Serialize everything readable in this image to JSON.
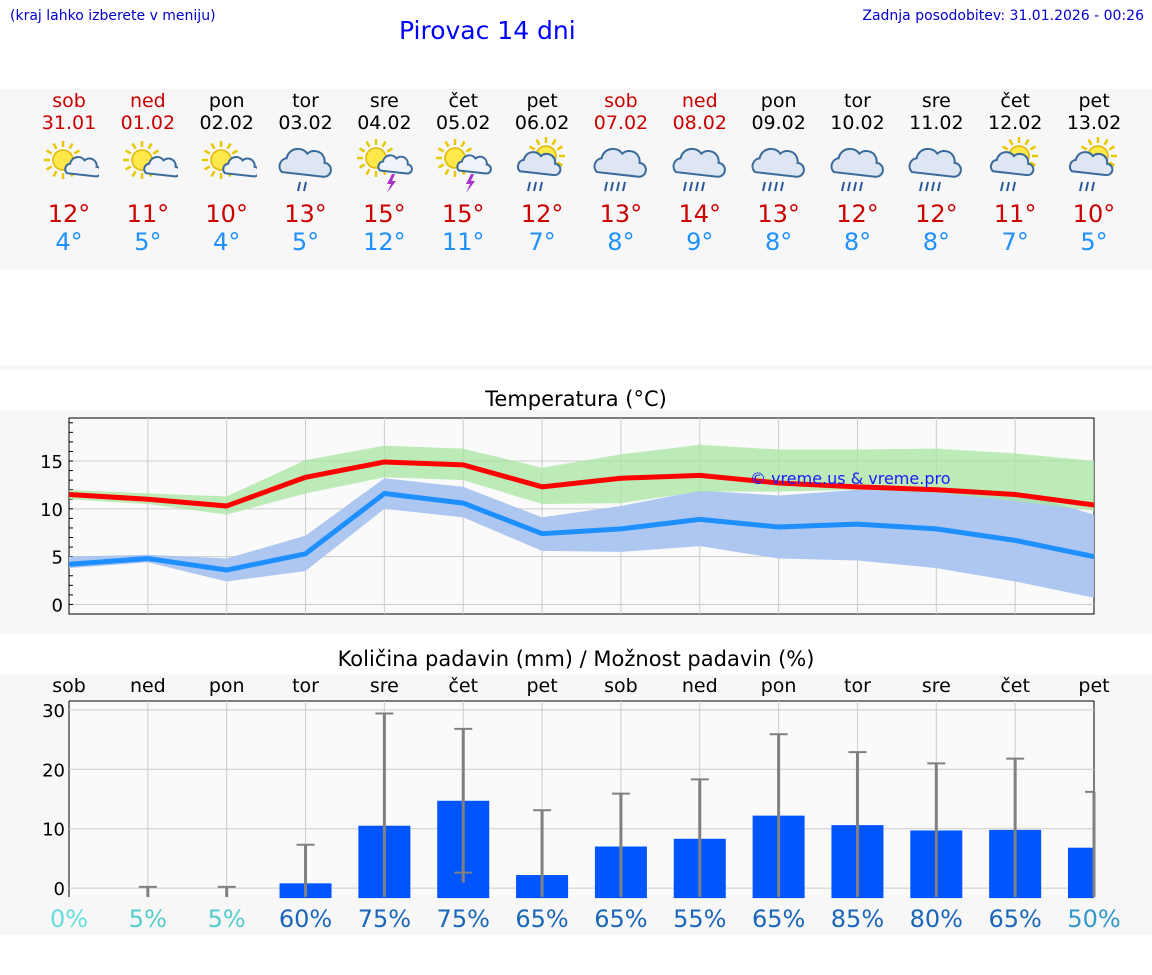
{
  "header": {
    "hint": "(kraj lahko izberete v meniju)",
    "title": "Pirovac 14 dni",
    "updated": "Zadnja posodobitev: 31.01.2026 - 00:26"
  },
  "days": [
    {
      "name": "sob",
      "date": "31.01",
      "weekend": true,
      "icon": "sun-cloud-icon",
      "max": "12°",
      "min": "4°"
    },
    {
      "name": "ned",
      "date": "01.02",
      "weekend": true,
      "icon": "sun-cloud-icon",
      "max": "11°",
      "min": "5°"
    },
    {
      "name": "pon",
      "date": "02.02",
      "weekend": false,
      "icon": "sun-cloud-icon",
      "max": "10°",
      "min": "4°"
    },
    {
      "name": "tor",
      "date": "03.02",
      "weekend": false,
      "icon": "cloud-light-rain-icon",
      "max": "13°",
      "min": "5°"
    },
    {
      "name": "sre",
      "date": "04.02",
      "weekend": false,
      "icon": "sun-thunder-icon",
      "max": "15°",
      "min": "12°"
    },
    {
      "name": "čet",
      "date": "05.02",
      "weekend": false,
      "icon": "sun-thunder-icon",
      "max": "15°",
      "min": "11°"
    },
    {
      "name": "pet",
      "date": "06.02",
      "weekend": false,
      "icon": "sun-cloud-rain-icon",
      "max": "12°",
      "min": "7°"
    },
    {
      "name": "sob",
      "date": "07.02",
      "weekend": true,
      "icon": "cloud-rain-icon",
      "max": "13°",
      "min": "8°"
    },
    {
      "name": "ned",
      "date": "08.02",
      "weekend": true,
      "icon": "cloud-rain-icon",
      "max": "14°",
      "min": "9°"
    },
    {
      "name": "pon",
      "date": "09.02",
      "weekend": false,
      "icon": "cloud-rain-icon",
      "max": "13°",
      "min": "8°"
    },
    {
      "name": "tor",
      "date": "10.02",
      "weekend": false,
      "icon": "cloud-rain-icon",
      "max": "12°",
      "min": "8°"
    },
    {
      "name": "sre",
      "date": "11.02",
      "weekend": false,
      "icon": "cloud-rain-icon",
      "max": "12°",
      "min": "8°"
    },
    {
      "name": "čet",
      "date": "12.02",
      "weekend": false,
      "icon": "sun-cloud-rain-icon",
      "max": "11°",
      "min": "7°"
    },
    {
      "name": "pet",
      "date": "13.02",
      "weekend": false,
      "icon": "sun-cloud-rain-icon",
      "max": "10°",
      "min": "5°"
    }
  ],
  "colors": {
    "weekend": "#cc0000",
    "max": "#cc0000",
    "min": "#1e90ff",
    "max_line": "#ff0000",
    "min_line": "#1e8fff",
    "max_band": "#a8e6a0",
    "min_band": "#aac4f0",
    "overlap_band": "#7cc4a4",
    "bar": "#0055ff",
    "errbar": "#808080"
  },
  "chart_data": [
    {
      "type": "line",
      "title": "Temperatura (°C)",
      "watermark": "© vreme.us & vreme.pro",
      "x": [
        0,
        1,
        2,
        3,
        4,
        5,
        6,
        7,
        8,
        9,
        10,
        11,
        12,
        13
      ],
      "ylim": [
        -1,
        19.5
      ],
      "yticks": [
        0,
        5,
        10,
        15
      ],
      "series": [
        {
          "name": "max",
          "values": [
            11.5,
            11.0,
            10.3,
            13.3,
            14.9,
            14.6,
            12.3,
            13.2,
            13.5,
            12.7,
            12.3,
            12.0,
            11.5,
            10.4
          ],
          "band_low": [
            11.0,
            10.5,
            9.4,
            11.6,
            13.3,
            13.0,
            10.5,
            10.6,
            11.8,
            11.8,
            12.0,
            11.7,
            10.8,
            9.8
          ],
          "band_high": [
            12.0,
            11.6,
            11.3,
            15.1,
            16.6,
            16.3,
            14.3,
            15.7,
            16.7,
            16.2,
            16.2,
            16.3,
            15.8,
            15.0
          ]
        },
        {
          "name": "min",
          "values": [
            4.2,
            4.8,
            3.6,
            5.3,
            11.6,
            10.6,
            7.4,
            7.9,
            8.9,
            8.1,
            8.4,
            7.9,
            6.7,
            5.0
          ],
          "band_low": [
            3.8,
            4.4,
            2.4,
            3.5,
            10.0,
            9.1,
            5.6,
            5.5,
            6.1,
            4.8,
            4.6,
            3.8,
            2.4,
            0.7
          ],
          "band_high": [
            5.0,
            5.2,
            4.8,
            7.2,
            13.2,
            12.3,
            9.1,
            10.3,
            11.9,
            11.4,
            12.0,
            12.3,
            11.8,
            9.4
          ]
        }
      ]
    },
    {
      "type": "bar",
      "title": "Količina padavin (mm) / Možnost padavin (%)",
      "categories": [
        "sob",
        "ned",
        "pon",
        "tor",
        "sre",
        "čet",
        "pet",
        "sob",
        "ned",
        "pon",
        "tor",
        "sre",
        "čet",
        "pet"
      ],
      "values": [
        0,
        0,
        0,
        0.8,
        10.5,
        14.7,
        2.2,
        7.0,
        8.3,
        12.2,
        10.6,
        9.7,
        9.8,
        6.8
      ],
      "err_low": [
        0,
        0,
        0,
        0,
        0,
        2.6,
        0,
        0,
        0,
        0,
        0,
        0,
        0,
        0
      ],
      "err_high": [
        0,
        0.2,
        0.2,
        7.3,
        29.4,
        26.8,
        13.1,
        15.9,
        18.3,
        25.9,
        22.9,
        21.0,
        21.8,
        16.2
      ],
      "probability": [
        "0%",
        "5%",
        "5%",
        "60%",
        "75%",
        "75%",
        "65%",
        "65%",
        "55%",
        "65%",
        "85%",
        "80%",
        "65%",
        "50%"
      ],
      "prob_colors": [
        "#66dddd",
        "#55cccc",
        "#55cccc",
        "#1a66bb",
        "#1a66bb",
        "#1a66bb",
        "#1a66bb",
        "#1a66bb",
        "#1a66bb",
        "#1a66bb",
        "#1a66bb",
        "#1a66bb",
        "#1a66bb",
        "#3399cc"
      ],
      "ylim": [
        -1.5,
        31.5
      ],
      "yticks": [
        0,
        10,
        20,
        30
      ]
    }
  ]
}
